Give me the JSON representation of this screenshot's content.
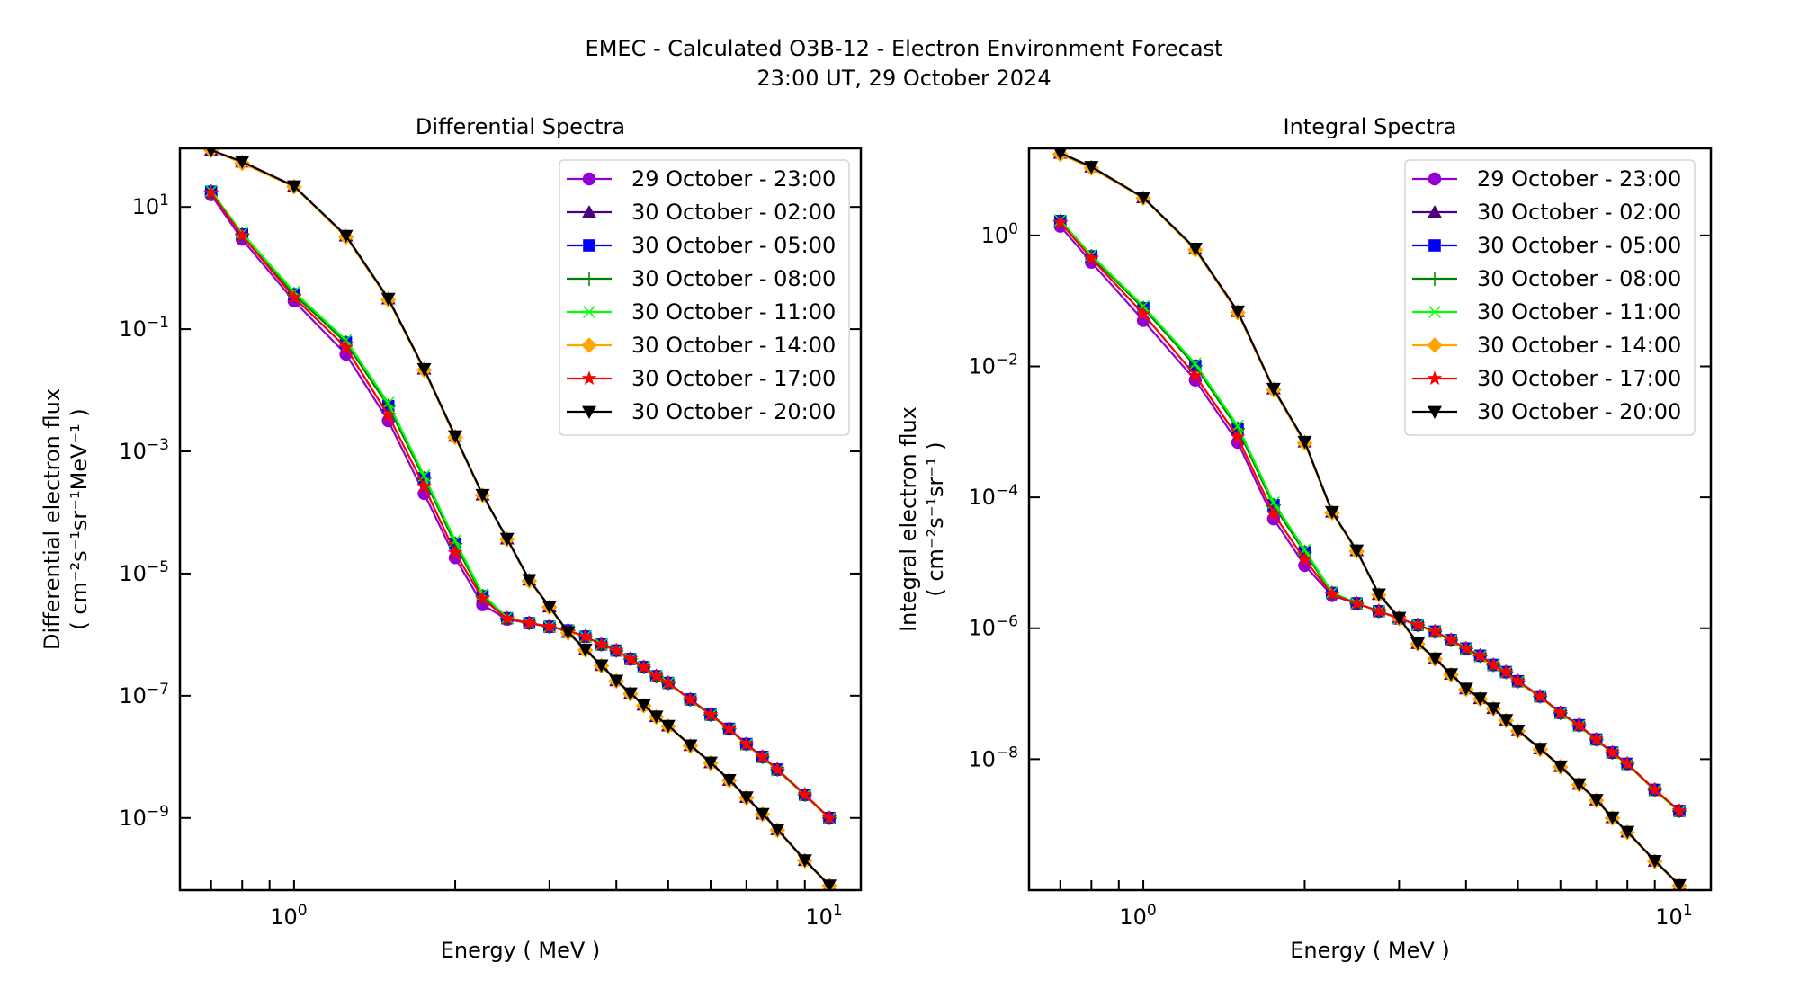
{
  "figure": {
    "suptitle_line1": "EMEC - Calculated O3B-12 - Electron Environment Forecast",
    "suptitle_line2": "23:00 UT, 29 October 2024"
  },
  "chart_data": [
    {
      "type": "line",
      "title": "Differential Spectra",
      "xlabel": "Energy ( MeV )",
      "ylabel_line1": "Differential electron flux",
      "ylabel_line2": "( cm⁻²s⁻¹sr⁻¹MeV⁻¹ )",
      "xscale": "log",
      "yscale": "log",
      "xlim": [
        0.612,
        11.45
      ],
      "ylim": [
        6.6e-11,
        91
      ],
      "xticks": [
        {
          "value": 1,
          "label": "10",
          "exp": "0"
        },
        {
          "value": 10,
          "label": "10",
          "exp": "1"
        }
      ],
      "yticks": [
        {
          "value": 10.0,
          "label": "10",
          "exp": "1"
        },
        {
          "value": 0.1,
          "label": "10",
          "exp": "−1"
        },
        {
          "value": 0.001,
          "label": "10",
          "exp": "−3"
        },
        {
          "value": 1e-05,
          "label": "10",
          "exp": "−5"
        },
        {
          "value": 1e-07,
          "label": "10",
          "exp": "−7"
        },
        {
          "value": 1e-09,
          "label": "10",
          "exp": "−9"
        }
      ],
      "grid": false,
      "legend_position": "top-right",
      "x": [
        0.7,
        0.8,
        1.0,
        1.25,
        1.5,
        1.75,
        2.0,
        2.25,
        2.5,
        2.75,
        3.0,
        3.25,
        3.5,
        3.75,
        4.0,
        4.25,
        4.5,
        4.75,
        5.0,
        5.5,
        6.0,
        6.5,
        7.0,
        7.5,
        8.0,
        9.0,
        10.0
      ],
      "series": [
        {
          "name": "29 October - 23:00",
          "color": "#9400d3",
          "marker": "circle",
          "values": [
            15.8,
            2.95,
            0.288,
            0.0389,
            0.00316,
            0.000204,
            1.82e-05,
            3.09e-06,
            1.78e-06,
            1.55e-06,
            1.35e-06,
            1.17e-06,
            9.3e-07,
            6.9e-07,
            5.5e-07,
            4e-07,
            2.95e-07,
            2.09e-07,
            1.62e-07,
            8.7e-08,
            4.9e-08,
            2.88e-08,
            1.62e-08,
            1e-08,
            6.2e-09,
            2.4e-09,
            1e-09
          ]
        },
        {
          "name": "30 October - 02:00",
          "color": "#4b0082",
          "marker": "triangle-up",
          "values": [
            85,
            55,
            21.9,
            3.39,
            0.316,
            0.0224,
            0.00178,
            0.000195,
            3.72e-05,
            7.9e-06,
            2.88e-06,
            1.1e-06,
            5.75e-07,
            3.16e-07,
            1.78e-07,
            1.1e-07,
            7.1e-08,
            4.6e-08,
            3.24e-08,
            1.55e-08,
            8.1e-09,
            4.2e-09,
            2.19e-09,
            1.17e-09,
            6.5e-10,
            2.04e-10,
            7.9e-11
          ]
        },
        {
          "name": "30 October - 05:00",
          "color": "#0000ff",
          "marker": "square",
          "values": [
            17.8,
            3.55,
            0.372,
            0.0603,
            0.0055,
            0.000363,
            3.09e-05,
            4.27e-06,
            1.86e-06,
            1.55e-06,
            1.35e-06,
            1.17e-06,
            9.3e-07,
            6.9e-07,
            5.5e-07,
            4e-07,
            2.95e-07,
            2.09e-07,
            1.62e-07,
            8.7e-08,
            4.9e-08,
            2.88e-08,
            1.62e-08,
            1e-08,
            6.2e-09,
            2.4e-09,
            1e-09
          ]
        },
        {
          "name": "30 October - 08:00",
          "color": "#008000",
          "marker": "plus",
          "values": [
            17.8,
            3.55,
            0.372,
            0.0603,
            0.0055,
            0.000363,
            3.09e-05,
            4.27e-06,
            1.86e-06,
            1.55e-06,
            1.35e-06,
            1.17e-06,
            9.3e-07,
            6.9e-07,
            5.5e-07,
            4e-07,
            2.95e-07,
            2.09e-07,
            1.62e-07,
            8.7e-08,
            4.9e-08,
            2.88e-08,
            1.62e-08,
            1e-08,
            6.2e-09,
            2.4e-09,
            1e-09
          ]
        },
        {
          "name": "30 October - 11:00",
          "color": "#00ff00",
          "marker": "x",
          "values": [
            18.2,
            3.72,
            0.407,
            0.0661,
            0.0062,
            0.0004,
            3.47e-05,
            4.6e-06,
            1.9e-06,
            1.55e-06,
            1.35e-06,
            1.17e-06,
            9.3e-07,
            6.9e-07,
            5.5e-07,
            4e-07,
            2.95e-07,
            2.09e-07,
            1.62e-07,
            8.5e-08,
            4.8e-08,
            2.82e-08,
            1.58e-08,
            9.8e-09,
            6e-09,
            2.35e-09,
            9.8e-10
          ]
        },
        {
          "name": "30 October - 14:00",
          "color": "#ffa500",
          "marker": "diamond",
          "values": [
            85,
            52,
            21.4,
            3.24,
            0.302,
            0.0214,
            0.0017,
            0.000191,
            3.63e-05,
            7.6e-06,
            2.82e-06,
            1.07e-06,
            5.6e-07,
            3.09e-07,
            1.74e-07,
            1.07e-07,
            6.9e-08,
            4.5e-08,
            3.16e-08,
            1.51e-08,
            7.9e-09,
            4.1e-09,
            2.14e-09,
            1.15e-09,
            6.3e-10,
            2e-10,
            7.8e-11
          ]
        },
        {
          "name": "30 October - 17:00",
          "color": "#ff0000",
          "marker": "star",
          "values": [
            17.0,
            3.39,
            0.331,
            0.0501,
            0.00389,
            0.000269,
            2.19e-05,
            3.89e-06,
            1.82e-06,
            1.55e-06,
            1.35e-06,
            1.17e-06,
            9.3e-07,
            6.9e-07,
            5.5e-07,
            4e-07,
            2.95e-07,
            2.09e-07,
            1.62e-07,
            8.7e-08,
            4.9e-08,
            2.88e-08,
            1.62e-08,
            1e-08,
            6.2e-09,
            2.4e-09,
            1e-09
          ]
        },
        {
          "name": "30 October - 20:00",
          "color": "#000000",
          "marker": "triangle-down",
          "values": [
            85,
            55,
            21.9,
            3.39,
            0.316,
            0.0224,
            0.00178,
            0.000195,
            3.72e-05,
            7.9e-06,
            2.88e-06,
            1.1e-06,
            5.75e-07,
            3.16e-07,
            1.78e-07,
            1.1e-07,
            7.1e-08,
            4.6e-08,
            3.24e-08,
            1.55e-08,
            8.1e-09,
            4.2e-09,
            2.19e-09,
            1.17e-09,
            6.5e-10,
            2.04e-10,
            7.9e-11
          ]
        }
      ]
    },
    {
      "type": "line",
      "title": "Integral Spectra",
      "xlabel": "Energy ( MeV )",
      "ylabel_line1": "Integral electron flux",
      "ylabel_line2": "( cm⁻²s⁻¹sr⁻¹ )",
      "xscale": "log",
      "yscale": "log",
      "xlim": [
        0.612,
        11.45
      ],
      "ylim": [
        1e-10,
        21.4
      ],
      "xticks": [
        {
          "value": 1,
          "label": "10",
          "exp": "0"
        },
        {
          "value": 10,
          "label": "10",
          "exp": "1"
        }
      ],
      "yticks": [
        {
          "value": 1.0,
          "label": "10",
          "exp": "0"
        },
        {
          "value": 0.01,
          "label": "10",
          "exp": "−2"
        },
        {
          "value": 0.0001,
          "label": "10",
          "exp": "−4"
        },
        {
          "value": 1e-06,
          "label": "10",
          "exp": "−6"
        },
        {
          "value": 1e-08,
          "label": "10",
          "exp": "−8"
        }
      ],
      "grid": false,
      "legend_position": "top-right",
      "x": [
        0.7,
        0.8,
        1.0,
        1.25,
        1.5,
        1.75,
        2.0,
        2.25,
        2.5,
        2.75,
        3.0,
        3.25,
        3.5,
        3.75,
        4.0,
        4.25,
        4.5,
        4.75,
        5.0,
        5.5,
        6.0,
        6.5,
        7.0,
        7.5,
        8.0,
        9.0,
        10.0
      ],
      "series": [
        {
          "name": "29 October - 23:00",
          "color": "#9400d3",
          "marker": "circle",
          "values": [
            1.38,
            0.389,
            0.0501,
            0.00617,
            0.00069,
            4.68e-05,
            9.1e-06,
            3.16e-06,
            2.4e-06,
            1.82e-06,
            1.41e-06,
            1.12e-06,
            8.9e-07,
            6.6e-07,
            4.9e-07,
            3.8e-07,
            2.75e-07,
            2.14e-07,
            1.55e-07,
            9.1e-08,
            5.1e-08,
            3.3e-08,
            2e-08,
            1.26e-08,
            8.5e-09,
            3.4e-09,
            1.62e-09
          ]
        },
        {
          "name": "30 October - 02:00",
          "color": "#4b0082",
          "marker": "triangle-up",
          "values": [
            18.2,
            11.2,
            3.8,
            0.631,
            0.0692,
            0.00457,
            0.000708,
            6e-05,
            1.55e-05,
            3.31e-06,
            1.45e-06,
            5.9e-07,
            3.47e-07,
            2e-07,
            1.2e-07,
            8.5e-08,
            6e-08,
            3.98e-08,
            2.75e-08,
            1.45e-08,
            7.8e-09,
            4.17e-09,
            2.4e-09,
            1.29e-09,
            7.8e-10,
            2.8e-10,
            1.2e-10
          ]
        },
        {
          "name": "30 October - 05:00",
          "color": "#0000ff",
          "marker": "square",
          "values": [
            1.66,
            0.479,
            0.0776,
            0.0102,
            0.00112,
            7.6e-05,
            1.45e-05,
            3.47e-06,
            2.4e-06,
            1.82e-06,
            1.41e-06,
            1.12e-06,
            8.9e-07,
            6.6e-07,
            4.9e-07,
            3.8e-07,
            2.75e-07,
            2.14e-07,
            1.55e-07,
            9.1e-08,
            5.1e-08,
            3.3e-08,
            2e-08,
            1.26e-08,
            8.5e-09,
            3.4e-09,
            1.62e-09
          ]
        },
        {
          "name": "30 October - 08:00",
          "color": "#008000",
          "marker": "plus",
          "values": [
            1.66,
            0.479,
            0.0776,
            0.0102,
            0.00112,
            7.6e-05,
            1.45e-05,
            3.47e-06,
            2.4e-06,
            1.82e-06,
            1.41e-06,
            1.12e-06,
            8.9e-07,
            6.6e-07,
            4.9e-07,
            3.8e-07,
            2.75e-07,
            2.14e-07,
            1.55e-07,
            9.1e-08,
            5.1e-08,
            3.3e-08,
            2e-08,
            1.26e-08,
            8.5e-09,
            3.4e-09,
            1.62e-09
          ]
        },
        {
          "name": "30 October - 11:00",
          "color": "#00ff00",
          "marker": "x",
          "values": [
            1.7,
            0.5,
            0.0832,
            0.011,
            0.00123,
            8.3e-05,
            1.58e-05,
            3.55e-06,
            2.4e-06,
            1.82e-06,
            1.41e-06,
            1.12e-06,
            8.7e-07,
            6.5e-07,
            4.8e-07,
            3.7e-07,
            2.7e-07,
            2.1e-07,
            1.51e-07,
            8.9e-08,
            5e-08,
            3.2e-08,
            1.95e-08,
            1.23e-08,
            8.3e-09,
            3.3e-09,
            1.58e-09
          ]
        },
        {
          "name": "30 October - 14:00",
          "color": "#ffa500",
          "marker": "diamond",
          "values": [
            17.4,
            10.7,
            3.72,
            0.603,
            0.0661,
            0.00437,
            0.000676,
            5.8e-05,
            1.5e-05,
            3.24e-06,
            1.41e-06,
            5.75e-07,
            3.39e-07,
            1.95e-07,
            1.17e-07,
            8.3e-08,
            5.9e-08,
            3.9e-08,
            2.69e-08,
            1.41e-08,
            7.6e-09,
            4.07e-09,
            2.34e-09,
            1.26e-09,
            7.6e-10,
            2.75e-10,
            1.17e-10
          ]
        },
        {
          "name": "30 October - 17:00",
          "color": "#ff0000",
          "marker": "star",
          "values": [
            1.58,
            0.447,
            0.0631,
            0.00724,
            0.00083,
            5.6e-05,
            1.12e-05,
            3.31e-06,
            2.4e-06,
            1.82e-06,
            1.41e-06,
            1.12e-06,
            8.9e-07,
            6.6e-07,
            4.9e-07,
            3.8e-07,
            2.75e-07,
            2.14e-07,
            1.55e-07,
            9.1e-08,
            5.1e-08,
            3.3e-08,
            2e-08,
            1.26e-08,
            8.5e-09,
            3.4e-09,
            1.62e-09
          ]
        },
        {
          "name": "30 October - 20:00",
          "color": "#000000",
          "marker": "triangle-down",
          "values": [
            18.2,
            11.2,
            3.8,
            0.631,
            0.0692,
            0.00457,
            0.000708,
            6e-05,
            1.55e-05,
            3.31e-06,
            1.45e-06,
            5.9e-07,
            3.47e-07,
            2e-07,
            1.2e-07,
            8.5e-08,
            6e-08,
            3.98e-08,
            2.75e-08,
            1.45e-08,
            7.8e-09,
            4.17e-09,
            2.4e-09,
            1.29e-09,
            7.8e-10,
            2.8e-10,
            1.2e-10
          ]
        }
      ]
    }
  ]
}
